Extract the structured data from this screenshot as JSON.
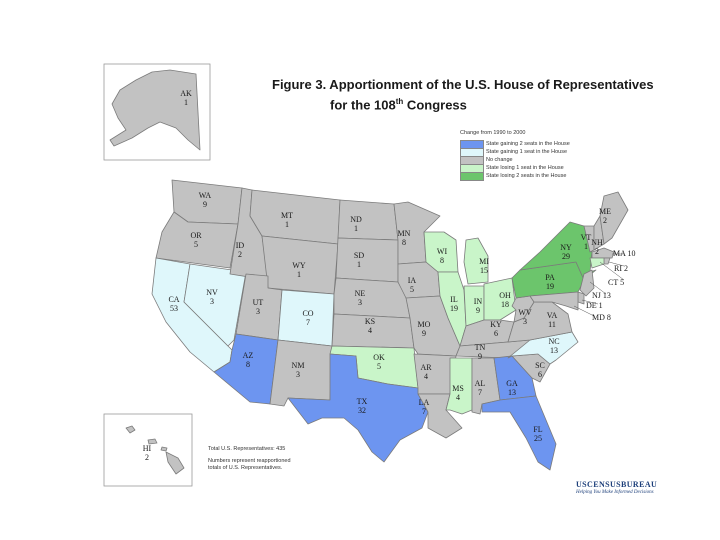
{
  "title": {
    "line1": "Figure 3.  Apportionment of the U.S. House of Representatives",
    "line2": "for the 108th Congress"
  },
  "legend": {
    "heading": "Change from 1990 to 2000",
    "items": [
      {
        "label": "State gaining 2 seats in the House",
        "color": "#6d95f0"
      },
      {
        "label": "State gaining 1 seat in the House",
        "color": "#dff7fb"
      },
      {
        "label": "No change",
        "color": "#c2c2c2"
      },
      {
        "label": "State losing 1 seat in the House",
        "color": "#c9f5c9"
      },
      {
        "label": "State losing 2 seats in the House",
        "color": "#6cc56c"
      }
    ]
  },
  "notes": {
    "total": "Total U.S. Representatives: 435",
    "explain": "Numbers represent reapportioned totals of U.S. Representatives."
  },
  "logo": {
    "name": "USCENSUSBUREAU",
    "tagline": "Helping You Make Informed Decisions"
  },
  "states": {
    "AK": {
      "abbr": "AK",
      "seats": "1",
      "change": 0
    },
    "HI": {
      "abbr": "HI",
      "seats": "2",
      "change": 0
    },
    "WA": {
      "abbr": "WA",
      "seats": "9",
      "change": 0
    },
    "OR": {
      "abbr": "OR",
      "seats": "5",
      "change": 0
    },
    "CA": {
      "abbr": "CA",
      "seats": "53",
      "change": 1
    },
    "NV": {
      "abbr": "NV",
      "seats": "3",
      "change": 1
    },
    "ID": {
      "abbr": "ID",
      "seats": "2",
      "change": 0
    },
    "MT": {
      "abbr": "MT",
      "seats": "1",
      "change": 0
    },
    "WY": {
      "abbr": "WY",
      "seats": "1",
      "change": 0
    },
    "UT": {
      "abbr": "UT",
      "seats": "3",
      "change": 0
    },
    "CO": {
      "abbr": "CO",
      "seats": "7",
      "change": 1
    },
    "AZ": {
      "abbr": "AZ",
      "seats": "8",
      "change": 2
    },
    "NM": {
      "abbr": "NM",
      "seats": "3",
      "change": 0
    },
    "ND": {
      "abbr": "ND",
      "seats": "1",
      "change": 0
    },
    "SD": {
      "abbr": "SD",
      "seats": "1",
      "change": 0
    },
    "NE": {
      "abbr": "NE",
      "seats": "3",
      "change": 0
    },
    "KS": {
      "abbr": "KS",
      "seats": "4",
      "change": 0
    },
    "OK": {
      "abbr": "OK",
      "seats": "5",
      "change": -1
    },
    "TX": {
      "abbr": "TX",
      "seats": "32",
      "change": 2
    },
    "MN": {
      "abbr": "MN",
      "seats": "8",
      "change": 0
    },
    "IA": {
      "abbr": "IA",
      "seats": "5",
      "change": 0
    },
    "MO": {
      "abbr": "MO",
      "seats": "9",
      "change": 0
    },
    "AR": {
      "abbr": "AR",
      "seats": "4",
      "change": 0
    },
    "LA": {
      "abbr": "LA",
      "seats": "7",
      "change": 0
    },
    "WI": {
      "abbr": "WI",
      "seats": "8",
      "change": -1
    },
    "IL": {
      "abbr": "IL",
      "seats": "19",
      "change": -1
    },
    "MI": {
      "abbr": "MI",
      "seats": "15",
      "change": -1
    },
    "IN": {
      "abbr": "IN",
      "seats": "9",
      "change": -1
    },
    "OH": {
      "abbr": "OH",
      "seats": "18",
      "change": -1
    },
    "KY": {
      "abbr": "KY",
      "seats": "6",
      "change": 0
    },
    "TN": {
      "abbr": "TN",
      "seats": "9",
      "change": 0
    },
    "MS": {
      "abbr": "MS",
      "seats": "4",
      "change": -1
    },
    "AL": {
      "abbr": "AL",
      "seats": "7",
      "change": 0
    },
    "GA": {
      "abbr": "GA",
      "seats": "13",
      "change": 2
    },
    "FL": {
      "abbr": "FL",
      "seats": "25",
      "change": 2
    },
    "SC": {
      "abbr": "SC",
      "seats": "6",
      "change": 0
    },
    "NC": {
      "abbr": "NC",
      "seats": "13",
      "change": 1
    },
    "VA": {
      "abbr": "VA",
      "seats": "11",
      "change": 0
    },
    "WV": {
      "abbr": "WV",
      "seats": "3",
      "change": 0
    },
    "PA": {
      "abbr": "PA",
      "seats": "19",
      "change": -2
    },
    "NY": {
      "abbr": "NY",
      "seats": "29",
      "change": -2
    },
    "VT": {
      "abbr": "VT",
      "seats": "1",
      "change": 0
    },
    "NH": {
      "abbr": "NH",
      "seats": "2",
      "change": 0
    },
    "ME": {
      "abbr": "ME",
      "seats": "2",
      "change": 0
    },
    "MA": {
      "abbr": "MA",
      "seats": "10",
      "change": 0
    },
    "RI": {
      "abbr": "RI",
      "seats": "2",
      "change": 0
    },
    "CT": {
      "abbr": "CT",
      "seats": "5",
      "change": -1
    },
    "NJ": {
      "abbr": "NJ",
      "seats": "13",
      "change": 0
    },
    "DE": {
      "abbr": "DE",
      "seats": "1",
      "change": 0
    },
    "MD": {
      "abbr": "MD",
      "seats": "8",
      "change": 0
    }
  }
}
